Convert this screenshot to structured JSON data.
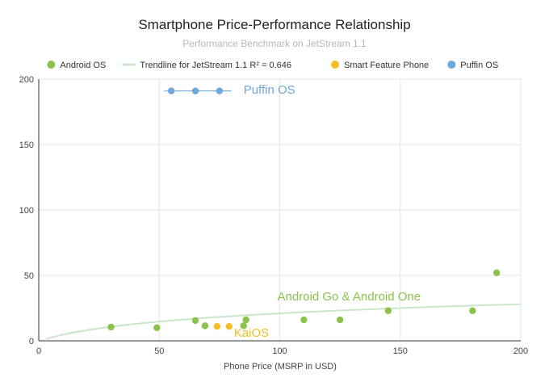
{
  "chart_data": {
    "type": "scatter",
    "title": "Smartphone Price-Performance Relationship",
    "subtitle": "Performance Benchmark on JetStream 1.1",
    "xlabel": "Phone Price (MSRP in USD)",
    "ylabel": "",
    "xlim": [
      0,
      200
    ],
    "ylim": [
      0,
      200
    ],
    "x_ticks": [
      "0",
      "50",
      "100",
      "150",
      "200"
    ],
    "y_ticks": [
      "0",
      "50",
      "100",
      "150",
      "200"
    ],
    "grid": true,
    "legend_position": "top",
    "legend": [
      {
        "label": "Android OS",
        "kind": "dot",
        "color": "#8bc34a"
      },
      {
        "label": "Trendline for JetStream 1.1 R² = 0.646",
        "kind": "line",
        "color": "#c8e6c9"
      },
      {
        "label": "Smart Feature Phone",
        "kind": "dot",
        "color": "#f2be22"
      },
      {
        "label": "Puffin OS",
        "kind": "dot",
        "color": "#6fa8dc"
      }
    ],
    "series": [
      {
        "name": "Android OS",
        "color": "#8bc34a",
        "points": [
          {
            "x": 30,
            "y": 10.5
          },
          {
            "x": 49,
            "y": 10
          },
          {
            "x": 65,
            "y": 15.5
          },
          {
            "x": 69,
            "y": 11.5
          },
          {
            "x": 85,
            "y": 11.5
          },
          {
            "x": 86,
            "y": 16
          },
          {
            "x": 110,
            "y": 16
          },
          {
            "x": 125,
            "y": 16
          },
          {
            "x": 145,
            "y": 23
          },
          {
            "x": 180,
            "y": 23
          },
          {
            "x": 190,
            "y": 52
          }
        ]
      },
      {
        "name": "Smart Feature Phone",
        "color": "#f2be22",
        "points": [
          {
            "x": 74,
            "y": 11
          },
          {
            "x": 79,
            "y": 11
          }
        ]
      },
      {
        "name": "Puffin OS",
        "color": "#6fa8dc",
        "points": [
          {
            "x": 55,
            "y": 191
          },
          {
            "x": 65,
            "y": 191
          },
          {
            "x": 75,
            "y": 191
          }
        ],
        "range_line": [
          52,
          80
        ]
      }
    ],
    "trendline": {
      "color": "#c8e6c9",
      "x": [
        3,
        200
      ],
      "y": [
        1.5,
        28
      ]
    },
    "annotations": [
      {
        "text": "Puffin OS",
        "color": "#6fa8dc",
        "x": 85,
        "y": 189
      },
      {
        "text": "Android Go & Android One",
        "color": "#8bc34a",
        "x": 99,
        "y": 31
      },
      {
        "text": "KaiOS",
        "color": "#f2be22",
        "x": 81,
        "y": 3
      }
    ]
  }
}
